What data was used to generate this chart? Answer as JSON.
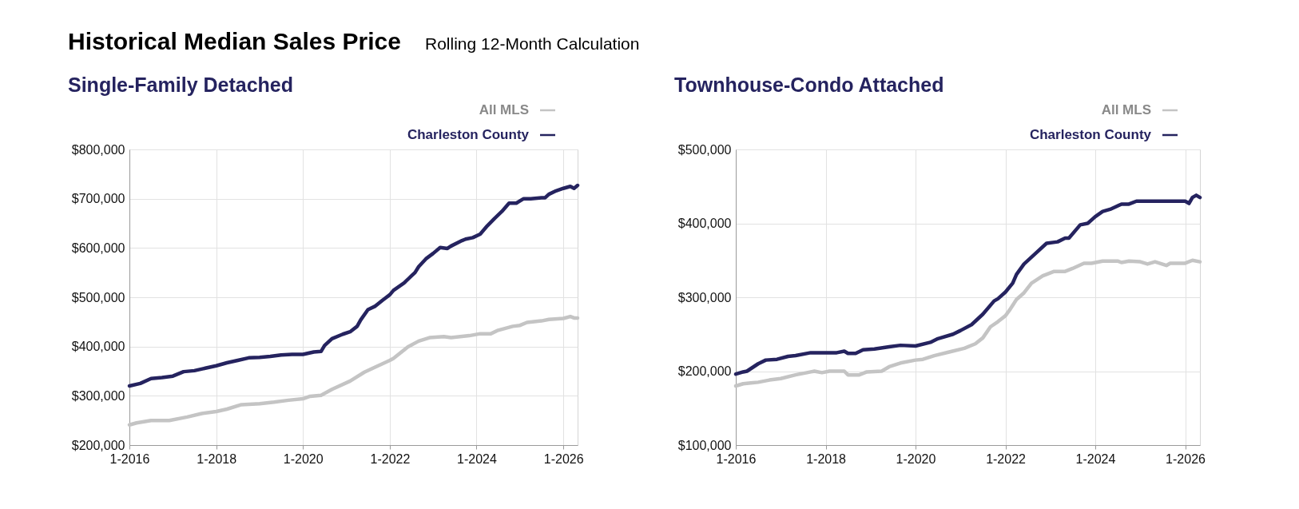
{
  "chart_data": [
    {
      "type": "line",
      "title": "Single-Family Detached",
      "annotations": [
        "Historical Median Sales Price",
        "Rolling 12-Month Calculation"
      ],
      "legend": "top right",
      "grid": true,
      "xlim": [
        "2016-01",
        "2026-05"
      ],
      "xticks": [
        {
          "value": "2016-01",
          "label": "1-2016"
        },
        {
          "value": "2018-01",
          "label": "1-2018"
        },
        {
          "value": "2020-01",
          "label": "1-2020"
        },
        {
          "value": "2022-01",
          "label": "1-2022"
        },
        {
          "value": "2024-01",
          "label": "1-2024"
        },
        {
          "value": "2026-01",
          "label": "1-2026"
        }
      ],
      "ylim": [
        200000,
        800000
      ],
      "yticks": [
        {
          "value": 200000,
          "label": "$200,000"
        },
        {
          "value": 300000,
          "label": "$300,000"
        },
        {
          "value": 400000,
          "label": "$400,000"
        },
        {
          "value": 500000,
          "label": "$500,000"
        },
        {
          "value": 600000,
          "label": "$600,000"
        },
        {
          "value": 700000,
          "label": "$700,000"
        },
        {
          "value": 800000,
          "label": "$800,000"
        }
      ],
      "series": [
        {
          "name": "All MLS",
          "color": "#c4c4c4",
          "x": [
            "2016-01",
            "2016-03",
            "2016-07",
            "2016-12",
            "2017-05",
            "2017-09",
            "2018-01",
            "2018-04",
            "2018-08",
            "2019-01",
            "2019-05",
            "2019-09",
            "2020-01",
            "2020-03",
            "2020-06",
            "2020-09",
            "2021-02",
            "2021-06",
            "2021-08",
            "2022-01",
            "2022-02",
            "2022-06",
            "2022-09",
            "2022-12",
            "2023-04",
            "2023-06",
            "2023-11",
            "2024-02",
            "2024-05",
            "2024-07",
            "2024-11",
            "2025-01",
            "2025-03",
            "2025-07",
            "2025-09",
            "2026-01",
            "2026-03",
            "2026-04",
            "2026-05"
          ],
          "values": [
            241000,
            245000,
            250000,
            250000,
            257000,
            264000,
            268000,
            273000,
            282000,
            284000,
            287000,
            291000,
            294000,
            299000,
            301000,
            313000,
            330000,
            348000,
            355000,
            372000,
            376000,
            399000,
            411000,
            418000,
            420000,
            418000,
            422000,
            426000,
            426000,
            433000,
            441000,
            443000,
            449000,
            452000,
            455000,
            457000,
            461000,
            458000,
            458000
          ]
        },
        {
          "name": "Charleston County",
          "color": "#25235f",
          "x": [
            "2016-01",
            "2016-04",
            "2016-07",
            "2016-10",
            "2017-01",
            "2017-04",
            "2017-07",
            "2017-10",
            "2018-01",
            "2018-04",
            "2018-07",
            "2018-10",
            "2019-01",
            "2019-04",
            "2019-07",
            "2019-10",
            "2020-01",
            "2020-04",
            "2020-06",
            "2020-07",
            "2020-09",
            "2020-12",
            "2021-02",
            "2021-04",
            "2021-05",
            "2021-07",
            "2021-09",
            "2021-11",
            "2022-01",
            "2022-02",
            "2022-05",
            "2022-07",
            "2022-08",
            "2022-09",
            "2022-11",
            "2023-01",
            "2023-03",
            "2023-05",
            "2023-06",
            "2023-09",
            "2023-10",
            "2023-12",
            "2024-02",
            "2024-04",
            "2024-06",
            "2024-08",
            "2024-10",
            "2024-12",
            "2025-02",
            "2025-04",
            "2025-07",
            "2025-08",
            "2025-09",
            "2025-11",
            "2026-01",
            "2026-03",
            "2026-04",
            "2026-05"
          ],
          "values": [
            320000,
            325000,
            335000,
            337000,
            340000,
            349000,
            351000,
            356000,
            361000,
            367000,
            372000,
            377000,
            378000,
            380000,
            383000,
            384000,
            384000,
            389000,
            390000,
            402000,
            416000,
            425000,
            430000,
            441000,
            454000,
            475000,
            482000,
            494000,
            505000,
            514000,
            529000,
            543000,
            550000,
            562000,
            578000,
            589000,
            601000,
            599000,
            604000,
            615000,
            618000,
            621000,
            628000,
            645000,
            660000,
            674000,
            691000,
            691000,
            700000,
            700000,
            702000,
            702000,
            709000,
            716000,
            721000,
            725000,
            721000,
            727000
          ]
        }
      ]
    },
    {
      "type": "line",
      "title": "Townhouse-Condo Attached",
      "legend": "top right",
      "grid": true,
      "xlim": [
        "2016-01",
        "2026-05"
      ],
      "xticks": [
        {
          "value": "2016-01",
          "label": "1-2016"
        },
        {
          "value": "2018-01",
          "label": "1-2018"
        },
        {
          "value": "2020-01",
          "label": "1-2020"
        },
        {
          "value": "2022-01",
          "label": "1-2022"
        },
        {
          "value": "2024-01",
          "label": "1-2024"
        },
        {
          "value": "2026-01",
          "label": "1-2026"
        }
      ],
      "ylim": [
        100000,
        500000
      ],
      "yticks": [
        {
          "value": 100000,
          "label": "$100,000"
        },
        {
          "value": 200000,
          "label": "$200,000"
        },
        {
          "value": 300000,
          "label": "$300,000"
        },
        {
          "value": 400000,
          "label": "$400,000"
        },
        {
          "value": 500000,
          "label": "$500,000"
        }
      ],
      "series": [
        {
          "name": "All MLS",
          "color": "#c4c4c4",
          "x": [
            "2016-01",
            "2016-03",
            "2016-05",
            "2016-07",
            "2016-10",
            "2017-01",
            "2017-05",
            "2017-08",
            "2017-10",
            "2017-12",
            "2018-02",
            "2018-06",
            "2018-07",
            "2018-10",
            "2018-12",
            "2019-04",
            "2019-06",
            "2019-09",
            "2020-01",
            "2020-03",
            "2020-06",
            "2020-10",
            "2021-02",
            "2021-05",
            "2021-07",
            "2021-09",
            "2021-11",
            "2022-01",
            "2022-02",
            "2022-04",
            "2022-06",
            "2022-08",
            "2022-11",
            "2022-12",
            "2023-02",
            "2023-05",
            "2023-07",
            "2023-10",
            "2023-12",
            "2024-03",
            "2024-07",
            "2024-08",
            "2024-10",
            "2025-01",
            "2025-03",
            "2025-05",
            "2025-08",
            "2025-09",
            "2026-01",
            "2026-03",
            "2026-05"
          ],
          "values": [
            180000,
            183000,
            184000,
            185000,
            188000,
            190000,
            195000,
            198000,
            200000,
            198000,
            200000,
            200000,
            195000,
            195000,
            199000,
            200000,
            206000,
            211000,
            215000,
            216000,
            221000,
            226000,
            231000,
            237000,
            245000,
            260000,
            267000,
            275000,
            282000,
            297000,
            306000,
            319000,
            329000,
            331000,
            335000,
            335000,
            339000,
            346000,
            346000,
            349000,
            349000,
            347000,
            349000,
            348000,
            345000,
            348000,
            343000,
            346000,
            346000,
            350000,
            348000
          ]
        },
        {
          "name": "Charleston County",
          "color": "#25235f",
          "x": [
            "2016-01",
            "2016-03",
            "2016-04",
            "2016-07",
            "2016-09",
            "2016-12",
            "2017-03",
            "2017-05",
            "2017-09",
            "2017-12",
            "2018-04",
            "2018-06",
            "2018-07",
            "2018-09",
            "2018-11",
            "2019-02",
            "2019-06",
            "2019-09",
            "2020-01",
            "2020-05",
            "2020-07",
            "2020-11",
            "2021-01",
            "2021-04",
            "2021-07",
            "2021-10",
            "2021-11",
            "2022-01",
            "2022-03",
            "2022-04",
            "2022-06",
            "2022-09",
            "2022-12",
            "2023-03",
            "2023-05",
            "2023-06",
            "2023-09",
            "2023-11",
            "2024-01",
            "2024-03",
            "2024-05",
            "2024-08",
            "2024-10",
            "2024-12",
            "2025-04",
            "2025-09",
            "2026-01",
            "2026-02",
            "2026-03",
            "2026-04",
            "2026-05"
          ],
          "values": [
            196000,
            199000,
            200000,
            210000,
            215000,
            216000,
            220000,
            221000,
            225000,
            225000,
            225000,
            227000,
            224000,
            224000,
            229000,
            230000,
            233000,
            235000,
            234000,
            239000,
            244000,
            250000,
            255000,
            263000,
            277000,
            295000,
            298000,
            307000,
            319000,
            331000,
            345000,
            359000,
            373000,
            375000,
            380000,
            380000,
            398000,
            400000,
            409000,
            416000,
            419000,
            426000,
            426000,
            430000,
            430000,
            430000,
            430000,
            427000,
            435000,
            438000,
            435000
          ]
        }
      ]
    }
  ]
}
